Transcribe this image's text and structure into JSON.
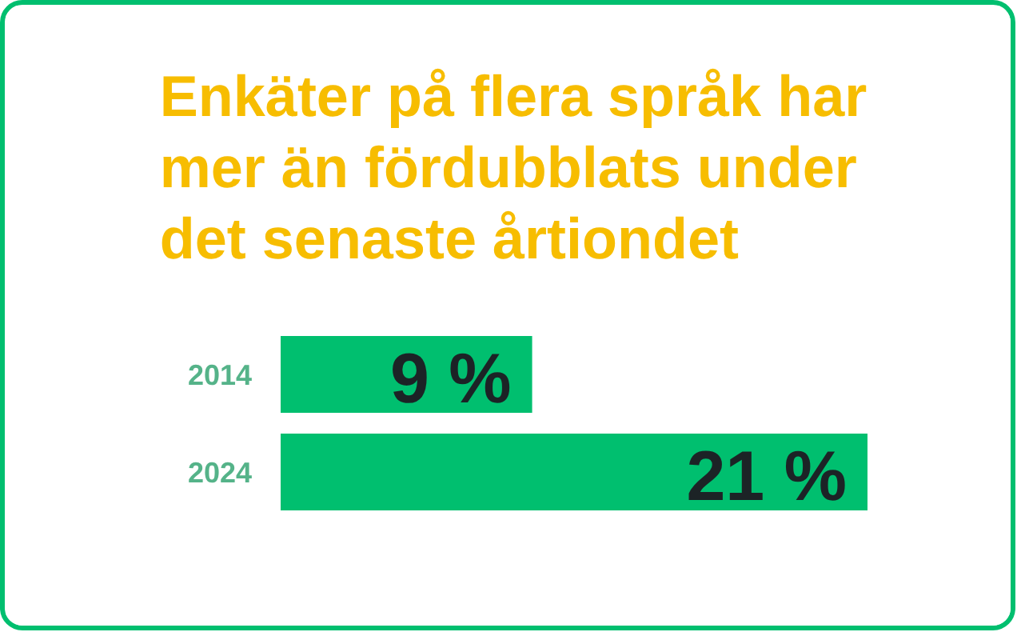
{
  "chart_data": {
    "type": "bar",
    "orientation": "horizontal",
    "title": "Enkäter på flera språk har mer än fördubblats under det senaste årtiondet",
    "categories": [
      "2014",
      "2024"
    ],
    "values": [
      9,
      21
    ],
    "color": "#00bf6f",
    "value_labels": [
      "9 %",
      "21 %"
    ],
    "tick_labels": "y",
    "grid": false
  }
}
